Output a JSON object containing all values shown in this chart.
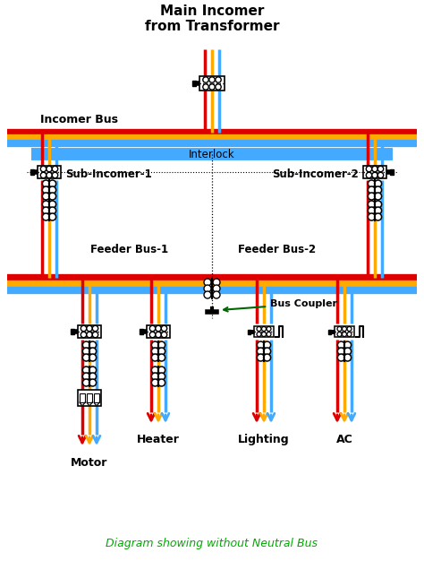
{
  "title": "Main Incomer\nfrom Transformer",
  "subtitle": "Diagram showing without Neutral Bus",
  "subtitle_color": "#00aa00",
  "bg_color": "#ffffff",
  "colors": {
    "red": "#dd0000",
    "yellow": "#ffaa00",
    "blue": "#44aaff",
    "black": "#000000",
    "dark_green": "#006600"
  },
  "labels": {
    "incomer_bus": "Incomer Bus",
    "sub1": "Sub-Incomer-1",
    "sub2": "Sub-Incomer-2",
    "feeder1": "Feeder Bus-1",
    "feeder2": "Feeder Bus-2",
    "interlock": "Interlock",
    "bus_coupler": "Bus Coupler",
    "motor": "Motor",
    "heater": "Heater",
    "lighting": "Lighting",
    "ac": "AC"
  },
  "lw_bus": 6,
  "lw_wire": 2.5,
  "lw_thin": 1.5
}
